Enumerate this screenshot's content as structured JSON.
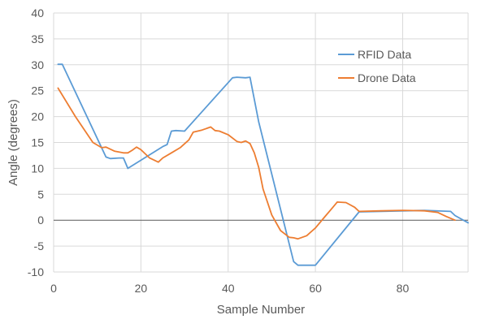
{
  "chart_data": {
    "type": "line",
    "title": "",
    "xlabel": "Sample Number",
    "ylabel": "Angle (degrees)",
    "xlim": [
      0,
      95
    ],
    "ylim": [
      -10,
      40
    ],
    "x_ticks": [
      0,
      20,
      40,
      60,
      80
    ],
    "y_ticks": [
      -10,
      -5,
      0,
      5,
      10,
      15,
      20,
      25,
      30,
      35,
      40
    ],
    "grid": true,
    "legend_position": "top-right",
    "series": [
      {
        "name": "RFID Data",
        "color": "#5b9bd5",
        "points": [
          [
            1,
            30.1
          ],
          [
            2,
            30.1
          ],
          [
            12,
            12.2
          ],
          [
            13,
            11.9
          ],
          [
            15,
            12.0
          ],
          [
            16,
            12.0
          ],
          [
            17,
            10.0
          ],
          [
            25,
            14.2
          ],
          [
            26,
            14.6
          ],
          [
            27,
            17.2
          ],
          [
            28,
            17.3
          ],
          [
            30,
            17.2
          ],
          [
            41,
            27.5
          ],
          [
            42,
            27.6
          ],
          [
            44,
            27.5
          ],
          [
            45,
            27.6
          ],
          [
            47,
            19.0
          ],
          [
            55,
            -8.0
          ],
          [
            56,
            -8.7
          ],
          [
            60,
            -8.7
          ],
          [
            70,
            1.6
          ],
          [
            85,
            1.9
          ],
          [
            91,
            1.7
          ],
          [
            92,
            0.9
          ],
          [
            95,
            -0.5
          ]
        ]
      },
      {
        "name": "Drone Data",
        "color": "#ed7d31",
        "points": [
          [
            1,
            25.5
          ],
          [
            5,
            20.0
          ],
          [
            9,
            15.0
          ],
          [
            11,
            14.0
          ],
          [
            12,
            14.1
          ],
          [
            14,
            13.3
          ],
          [
            16,
            13.0
          ],
          [
            17,
            13.0
          ],
          [
            18,
            13.5
          ],
          [
            19,
            14.1
          ],
          [
            20,
            13.6
          ],
          [
            22,
            12.0
          ],
          [
            24,
            11.2
          ],
          [
            25,
            12.0
          ],
          [
            27,
            13.0
          ],
          [
            29,
            14.0
          ],
          [
            31,
            15.5
          ],
          [
            32,
            17.0
          ],
          [
            34,
            17.4
          ],
          [
            36,
            18.0
          ],
          [
            37,
            17.3
          ],
          [
            38,
            17.2
          ],
          [
            40,
            16.5
          ],
          [
            42,
            15.2
          ],
          [
            43,
            15.0
          ],
          [
            44,
            15.3
          ],
          [
            45,
            14.8
          ],
          [
            46,
            13.0
          ],
          [
            47,
            10.2
          ],
          [
            48,
            6.0
          ],
          [
            50,
            1.0
          ],
          [
            52,
            -2.0
          ],
          [
            54,
            -3.3
          ],
          [
            55,
            -3.4
          ],
          [
            56,
            -3.6
          ],
          [
            58,
            -3.0
          ],
          [
            60,
            -1.5
          ],
          [
            62,
            0.5
          ],
          [
            64,
            2.5
          ],
          [
            65,
            3.5
          ],
          [
            67,
            3.4
          ],
          [
            69,
            2.5
          ],
          [
            70,
            1.7
          ],
          [
            75,
            1.8
          ],
          [
            80,
            1.9
          ],
          [
            85,
            1.8
          ],
          [
            88,
            1.5
          ],
          [
            90,
            0.7
          ],
          [
            92,
            0.0
          ]
        ]
      }
    ]
  }
}
